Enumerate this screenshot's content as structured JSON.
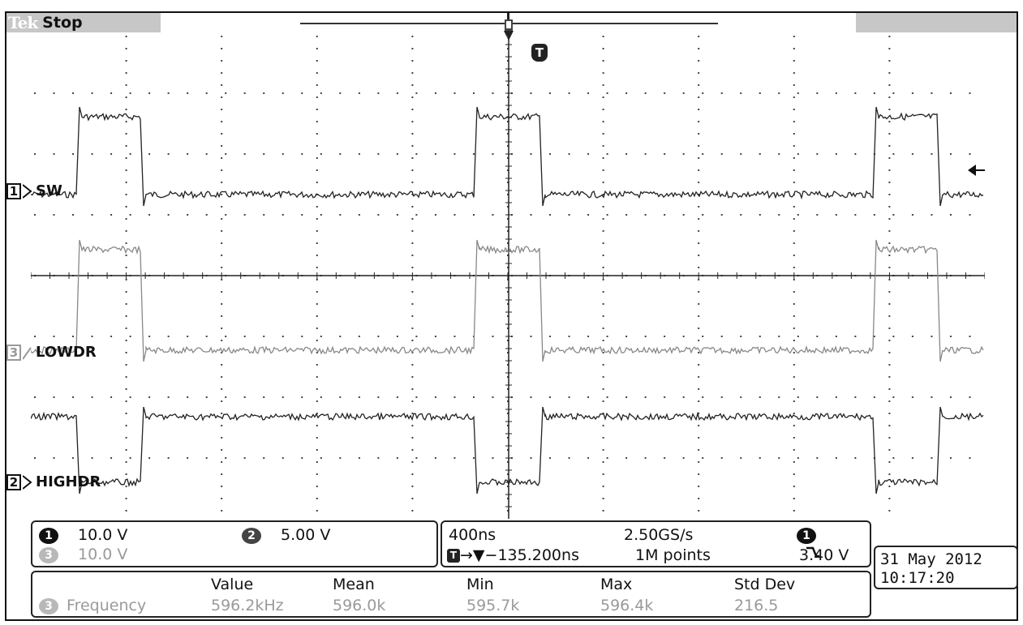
{
  "header": {
    "brand": "Tek",
    "acq_state": "Stop"
  },
  "channels": [
    {
      "number": "1",
      "name": "SW",
      "style": "boxed"
    },
    {
      "number": "3",
      "name": "LOWDR",
      "style": "gray"
    },
    {
      "number": "2",
      "name": "HIGHDR",
      "style": "boxed"
    }
  ],
  "trigger_marker_label": "T",
  "scale_panel": {
    "ch1": {
      "number": "1",
      "scale": "10.0 V"
    },
    "ch2": {
      "number": "2",
      "scale": "5.00 V"
    },
    "ch3": {
      "number": "3",
      "scale": "10.0 V"
    }
  },
  "timebase_panel": {
    "time_per_div": "400ns",
    "sample_rate": "2.50GS/s",
    "trigger_source": "1",
    "trigger_slope_icon": "falling-edge-icon",
    "trigger_position": "→▼−135.200ns",
    "record_length": "1M points",
    "trigger_level": "3.40 V"
  },
  "datetime": {
    "date": "31 May 2012",
    "time": "10:17:20"
  },
  "measurements": {
    "headers": [
      "Value",
      "Mean",
      "Min",
      "Max",
      "Std Dev"
    ],
    "rows": [
      {
        "source": "3",
        "name": "Frequency",
        "value": "596.2kHz",
        "mean": "596.0k",
        "min": "595.7k",
        "max": "596.4k",
        "std_dev": "216.5"
      }
    ]
  },
  "colors": {
    "trace": "#222222",
    "trace_gray": "#9a9a9a",
    "bar": "#c7c7c7"
  }
}
